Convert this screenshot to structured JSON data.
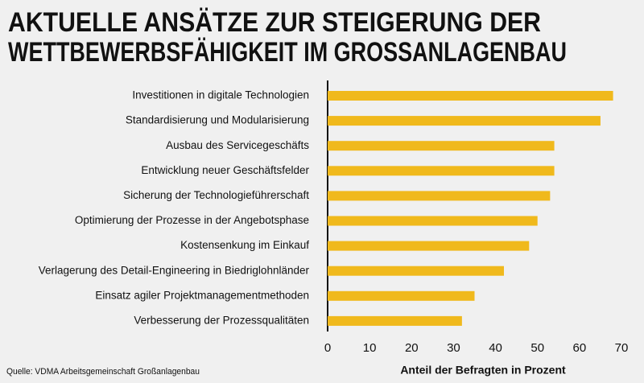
{
  "chart_data": {
    "type": "bar",
    "orientation": "horizontal",
    "title": [
      "AKTUELLE ANSÄTZE ZUR STEIGERUNG DER",
      "WETTBEWERBSFÄHIGKEIT IM GROSSANLAGENBAU"
    ],
    "categories": [
      "Investitionen in digitale Technologien",
      "Standardisierung und Modularisierung",
      "Ausbau des Servicegeschäfts",
      "Entwicklung neuer Geschäftsfelder",
      "Sicherung der Technologieführerschaft",
      "Optimierung der Prozesse in der Angebotsphase",
      "Kostensenkung im Einkauf",
      "Verlagerung des Detail-Engineering in Biedriglohnländer",
      "Einsatz agiler Projektmanagementmethoden",
      "Verbesserung der Prozessqualitäten"
    ],
    "values": [
      68,
      65,
      54,
      54,
      53,
      50,
      48,
      42,
      35,
      32
    ],
    "color": "#f0b91c",
    "xlim": [
      0,
      70
    ],
    "xticks": [
      0,
      10,
      20,
      30,
      40,
      50,
      60,
      70
    ],
    "xlabel": "Anteil der Befragten in Prozent",
    "source": "Quelle: VDMA Arbeitsgemeinschaft Großanlagenbau",
    "grid": false
  }
}
